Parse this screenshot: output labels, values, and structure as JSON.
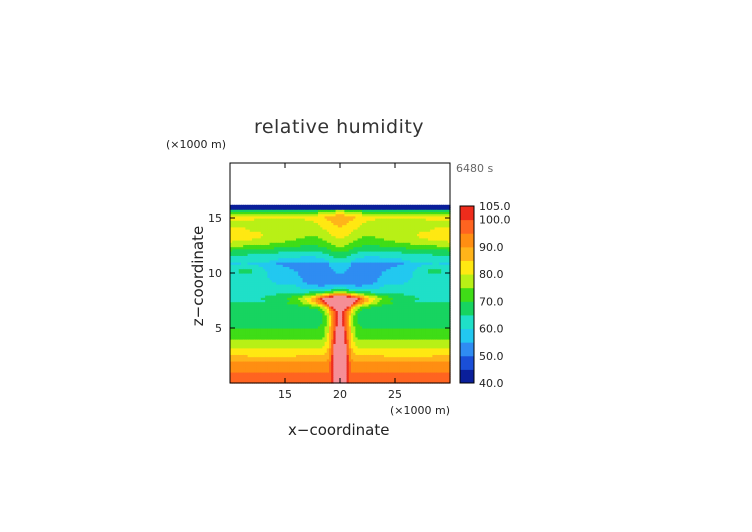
{
  "chart_data": {
    "type": "heatmap",
    "title": "relative humidity",
    "xlabel": "x−coordinate",
    "ylabel": "z−coordinate",
    "x_unit": "(×1000 m)",
    "z_unit": "(×1000 m)",
    "time_label": "6480 s",
    "xlim": [
      10,
      30
    ],
    "ylim": [
      0,
      20
    ],
    "x_ticks": [
      15,
      20,
      25
    ],
    "y_ticks": [
      5,
      10,
      15
    ],
    "colorbar": {
      "labels": [
        "105.0",
        "100.0",
        "90.0",
        "80.0",
        "70.0",
        "60.0",
        "50.0",
        "40.0"
      ],
      "values": [
        105,
        100,
        90,
        80,
        70,
        60,
        50,
        40
      ],
      "levels": [
        {
          "v": 40,
          "c": "#0a1f9a"
        },
        {
          "v": 45,
          "c": "#1a4fd8"
        },
        {
          "v": 50,
          "c": "#2f8cf2"
        },
        {
          "v": 55,
          "c": "#22c8f0"
        },
        {
          "v": 60,
          "c": "#1fe0c8"
        },
        {
          "v": 65,
          "c": "#17d460"
        },
        {
          "v": 70,
          "c": "#3fdd17"
        },
        {
          "v": 75,
          "c": "#b8f016"
        },
        {
          "v": 80,
          "c": "#ffe812"
        },
        {
          "v": 85,
          "c": "#ffb41a"
        },
        {
          "v": 90,
          "c": "#ff8e12"
        },
        {
          "v": 95,
          "c": "#ff6420"
        },
        {
          "v": 100,
          "c": "#ee2c1c"
        },
        {
          "v": 105,
          "c": "#f58e96"
        }
      ]
    },
    "grid": false
  }
}
